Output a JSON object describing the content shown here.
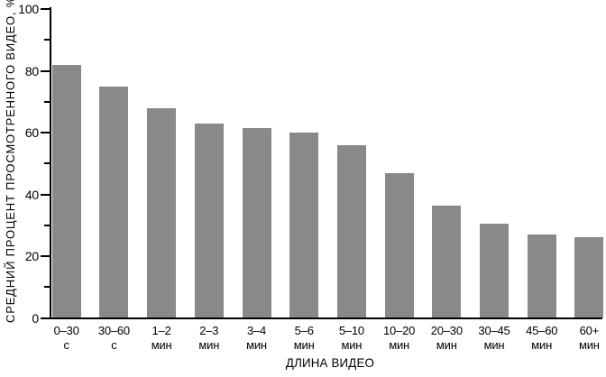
{
  "chart_data": {
    "type": "bar",
    "title": "",
    "ylabel": "СРЕДНИЙ ПРОЦЕНТ ПРОСМОТРЕННОГО ВИДЕО, %",
    "xlabel": "ДЛИНА ВИДЕО",
    "ylim": [
      0,
      100
    ],
    "yticks_major": [
      0,
      20,
      40,
      60,
      80,
      100
    ],
    "yticks_minor": [
      10,
      30,
      50,
      70,
      90
    ],
    "categories": [
      "0–30 с",
      "30–60 с",
      "1–2 мин",
      "2–3 мин",
      "3–4 мин",
      "5–6 мин",
      "5–10 мин",
      "10–20 мин",
      "20–30 мин",
      "30–45 мин",
      "45–60 мин",
      "60+ мин"
    ],
    "category_lines": [
      [
        "0–30",
        "с"
      ],
      [
        "30–60",
        "с"
      ],
      [
        "1–2",
        "мин"
      ],
      [
        "2–3",
        "мин"
      ],
      [
        "3–4",
        "мин"
      ],
      [
        "5–6",
        "мин"
      ],
      [
        "5–10",
        "мин"
      ],
      [
        "10–20",
        "мин"
      ],
      [
        "20–30",
        "мин"
      ],
      [
        "30–45",
        "мин"
      ],
      [
        "45–60",
        "мин"
      ],
      [
        "60+",
        "мин"
      ]
    ],
    "values": [
      82,
      75,
      68,
      63,
      61.5,
      60,
      56,
      47,
      36.5,
      30.5,
      27,
      26
    ],
    "bar_color": "#898989",
    "axis_color": "#000000",
    "background": "#ffffff",
    "grid": false,
    "legend": null
  }
}
